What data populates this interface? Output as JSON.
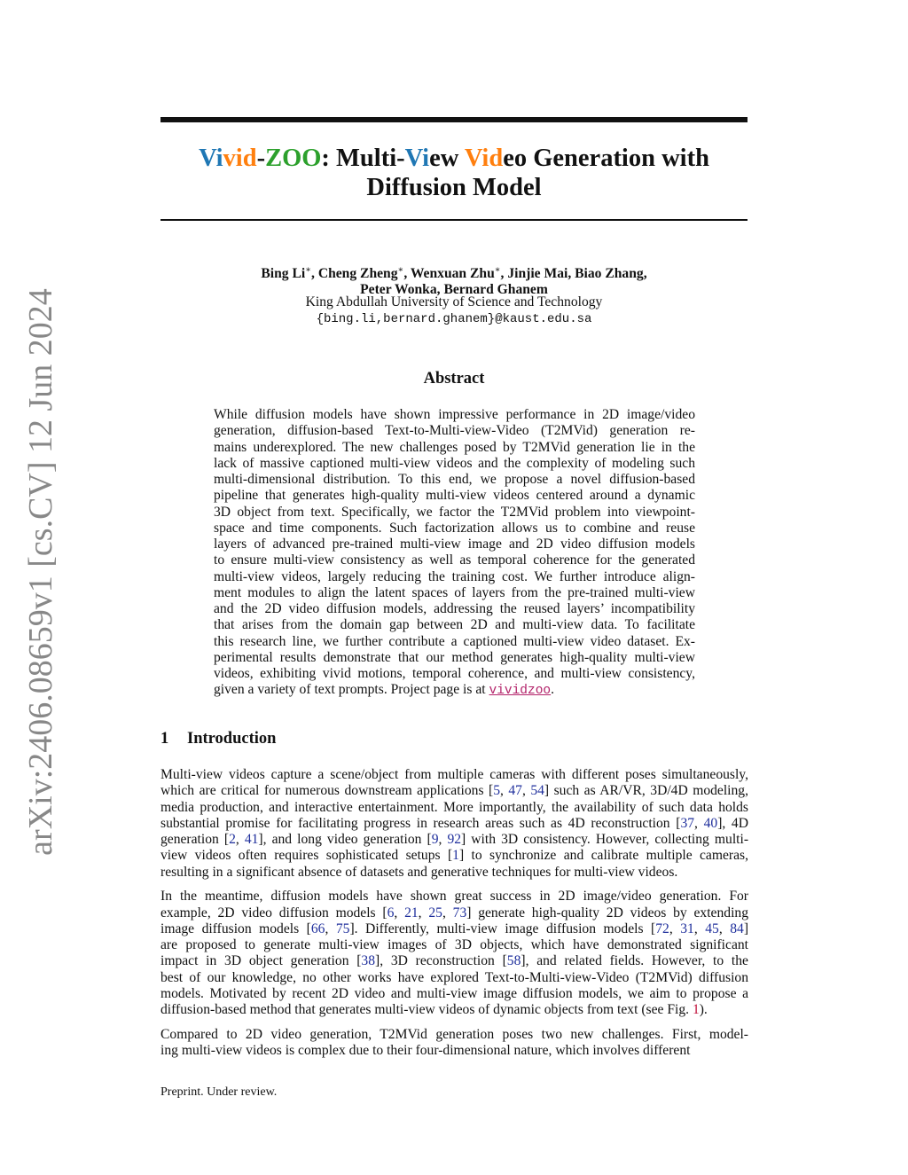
{
  "sidebar": {
    "arxiv_id": "arXiv:2406.08659v1  [cs.CV]  12 Jun 2024"
  },
  "title": {
    "line1": [
      {
        "text": "Vi",
        "color": "#1f77b4"
      },
      {
        "text": "vid",
        "color": "#ff7f0e"
      },
      {
        "text": "-",
        "color": "#111111"
      },
      {
        "text": "ZOO",
        "color": "#2ca02c"
      },
      {
        "text": ": Multi-",
        "color": "#111111"
      },
      {
        "text": "Vi",
        "color": "#1f77b4"
      },
      {
        "text": "ew ",
        "color": "#111111"
      },
      {
        "text": "Vid",
        "color": "#ff7f0e"
      },
      {
        "text": "eo Generation with",
        "color": "#111111"
      }
    ],
    "line2": "Diffusion Model"
  },
  "authors": {
    "line1": [
      {
        "text": "Bing Li"
      },
      {
        "text": "∗",
        "style": "sup"
      },
      {
        "text": ", Cheng Zheng"
      },
      {
        "text": "∗",
        "style": "sup"
      },
      {
        "text": ", Wenxuan Zhu"
      },
      {
        "text": "∗",
        "style": "sup"
      },
      {
        "text": ", Jinjie Mai, Biao Zhang,"
      }
    ],
    "line2": "Peter Wonka, Bernard Ghanem",
    "affiliation": "King Abdullah University of Science and Technology",
    "email": "{bing.li,bernard.ghanem}@kaust.edu.sa"
  },
  "abstract": {
    "heading": "Abstract",
    "paragraphs": [
      [
        [
          {
            "text": "While diffusion models have shown impressive performance in 2D image/video"
          }
        ],
        [
          {
            "text": "generation, diffusion-based Text-to-Multi-view-Video (T2MVid) generation re-"
          }
        ],
        [
          {
            "text": "mains underexplored. The new challenges posed by T2MVid generation lie in the"
          }
        ],
        [
          {
            "text": "lack of massive captioned multi-view videos and the complexity of modeling such"
          }
        ],
        [
          {
            "text": "multi-dimensional distribution. To this end, we propose a novel diffusion-based"
          }
        ],
        [
          {
            "text": "pipeline that generates high-quality multi-view videos centered around a dynamic"
          }
        ],
        [
          {
            "text": "3D object from text. Specifically, we factor the T2MVid problem into viewpoint-"
          }
        ],
        [
          {
            "text": "space and time components. Such factorization allows us to combine and reuse"
          }
        ],
        [
          {
            "text": "layers of advanced pre-trained multi-view image and 2D video diffusion models"
          }
        ],
        [
          {
            "text": "to ensure multi-view consistency as well as temporal coherence for the generated"
          }
        ],
        [
          {
            "text": "multi-view videos, largely reducing the training cost. We further introduce align-"
          }
        ],
        [
          {
            "text": "ment modules to align the latent spaces of layers from the pre-trained multi-view"
          }
        ],
        [
          {
            "text": "and the 2D video diffusion models, addressing the reused layers’ incompatibility"
          }
        ],
        [
          {
            "text": "that arises from the domain gap between 2D and multi-view data. To facilitate"
          }
        ],
        [
          {
            "text": "this research line, we further contribute a captioned multi-view video dataset. Ex-"
          }
        ],
        [
          {
            "text": "perimental results demonstrate that our method generates high-quality multi-view"
          }
        ],
        [
          {
            "text": "videos, exhibiting vivid motions, temporal coherence, and multi-view consistency,"
          }
        ],
        [
          {
            "text": "given a variety of text prompts. Project page is at "
          },
          {
            "text": "vividzoo",
            "style": "link"
          },
          {
            "text": "."
          }
        ]
      ]
    ]
  },
  "introduction": {
    "number": "1",
    "heading": "Introduction",
    "paragraphs": [
      [
        [
          {
            "text": "Multi-view videos capture a scene/object from multiple cameras with different poses simultaneously,"
          }
        ],
        [
          {
            "text": "which are critical for numerous downstream applications ["
          },
          {
            "text": "5",
            "style": "cite"
          },
          {
            "text": ", "
          },
          {
            "text": "47",
            "style": "cite"
          },
          {
            "text": ", "
          },
          {
            "text": "54",
            "style": "cite"
          },
          {
            "text": "] such as AR/VR, 3D/4D modeling,"
          }
        ],
        [
          {
            "text": "media production, and interactive entertainment. More importantly, the availability of such data holds"
          }
        ],
        [
          {
            "text": "substantial promise for facilitating progress in research areas such as 4D reconstruction ["
          },
          {
            "text": "37",
            "style": "cite"
          },
          {
            "text": ", "
          },
          {
            "text": "40",
            "style": "cite"
          },
          {
            "text": "], 4D"
          }
        ],
        [
          {
            "text": "generation ["
          },
          {
            "text": "2",
            "style": "cite"
          },
          {
            "text": ", "
          },
          {
            "text": "41",
            "style": "cite"
          },
          {
            "text": "], and long video generation ["
          },
          {
            "text": "9",
            "style": "cite"
          },
          {
            "text": ", "
          },
          {
            "text": "92",
            "style": "cite"
          },
          {
            "text": "] with 3D consistency. However, collecting multi-"
          }
        ],
        [
          {
            "text": "view videos often requires sophisticated setups ["
          },
          {
            "text": "1",
            "style": "cite"
          },
          {
            "text": "] to synchronize and calibrate multiple cameras,"
          }
        ],
        [
          {
            "text": "resulting in a significant absence of datasets and generative techniques for multi-view videos."
          }
        ]
      ],
      [
        [
          {
            "text": "In the meantime, diffusion models have shown great success in 2D image/video generation. For"
          }
        ],
        [
          {
            "text": "example, 2D video diffusion models ["
          },
          {
            "text": "6",
            "style": "cite"
          },
          {
            "text": ", "
          },
          {
            "text": "21",
            "style": "cite"
          },
          {
            "text": ", "
          },
          {
            "text": "25",
            "style": "cite"
          },
          {
            "text": ", "
          },
          {
            "text": "73",
            "style": "cite"
          },
          {
            "text": "] generate high-quality 2D videos by extending"
          }
        ],
        [
          {
            "text": "image diffusion models ["
          },
          {
            "text": "66",
            "style": "cite"
          },
          {
            "text": ", "
          },
          {
            "text": "75",
            "style": "cite"
          },
          {
            "text": "]. Differently, multi-view image diffusion models ["
          },
          {
            "text": "72",
            "style": "cite"
          },
          {
            "text": ", "
          },
          {
            "text": "31",
            "style": "cite"
          },
          {
            "text": ", "
          },
          {
            "text": "45",
            "style": "cite"
          },
          {
            "text": ", "
          },
          {
            "text": "84",
            "style": "cite"
          },
          {
            "text": "]"
          }
        ],
        [
          {
            "text": "are proposed to generate multi-view images of 3D objects, which have demonstrated significant"
          }
        ],
        [
          {
            "text": "impact in 3D object generation ["
          },
          {
            "text": "38",
            "style": "cite"
          },
          {
            "text": "], 3D reconstruction ["
          },
          {
            "text": "58",
            "style": "cite"
          },
          {
            "text": "], and related fields. However, to the"
          }
        ],
        [
          {
            "text": "best of our knowledge, no other works have explored Text-to-Multi-view-Video (T2MVid) diffusion"
          }
        ],
        [
          {
            "text": "models. Motivated by recent 2D video and multi-view image diffusion models, we aim to propose a"
          }
        ],
        [
          {
            "text": "diffusion-based method that generates multi-view videos of dynamic objects from text (see Fig. "
          },
          {
            "text": "1",
            "style": "ref"
          },
          {
            "text": ")."
          }
        ]
      ],
      [
        [
          {
            "text": "Compared to 2D video generation, T2MVid generation poses two new challenges. First, model-"
          }
        ],
        [
          {
            "text": "ing multi-view videos is complex due to their four-dimensional nature, which involves different"
          }
        ]
      ]
    ]
  },
  "footer": "Preprint. Under review."
}
